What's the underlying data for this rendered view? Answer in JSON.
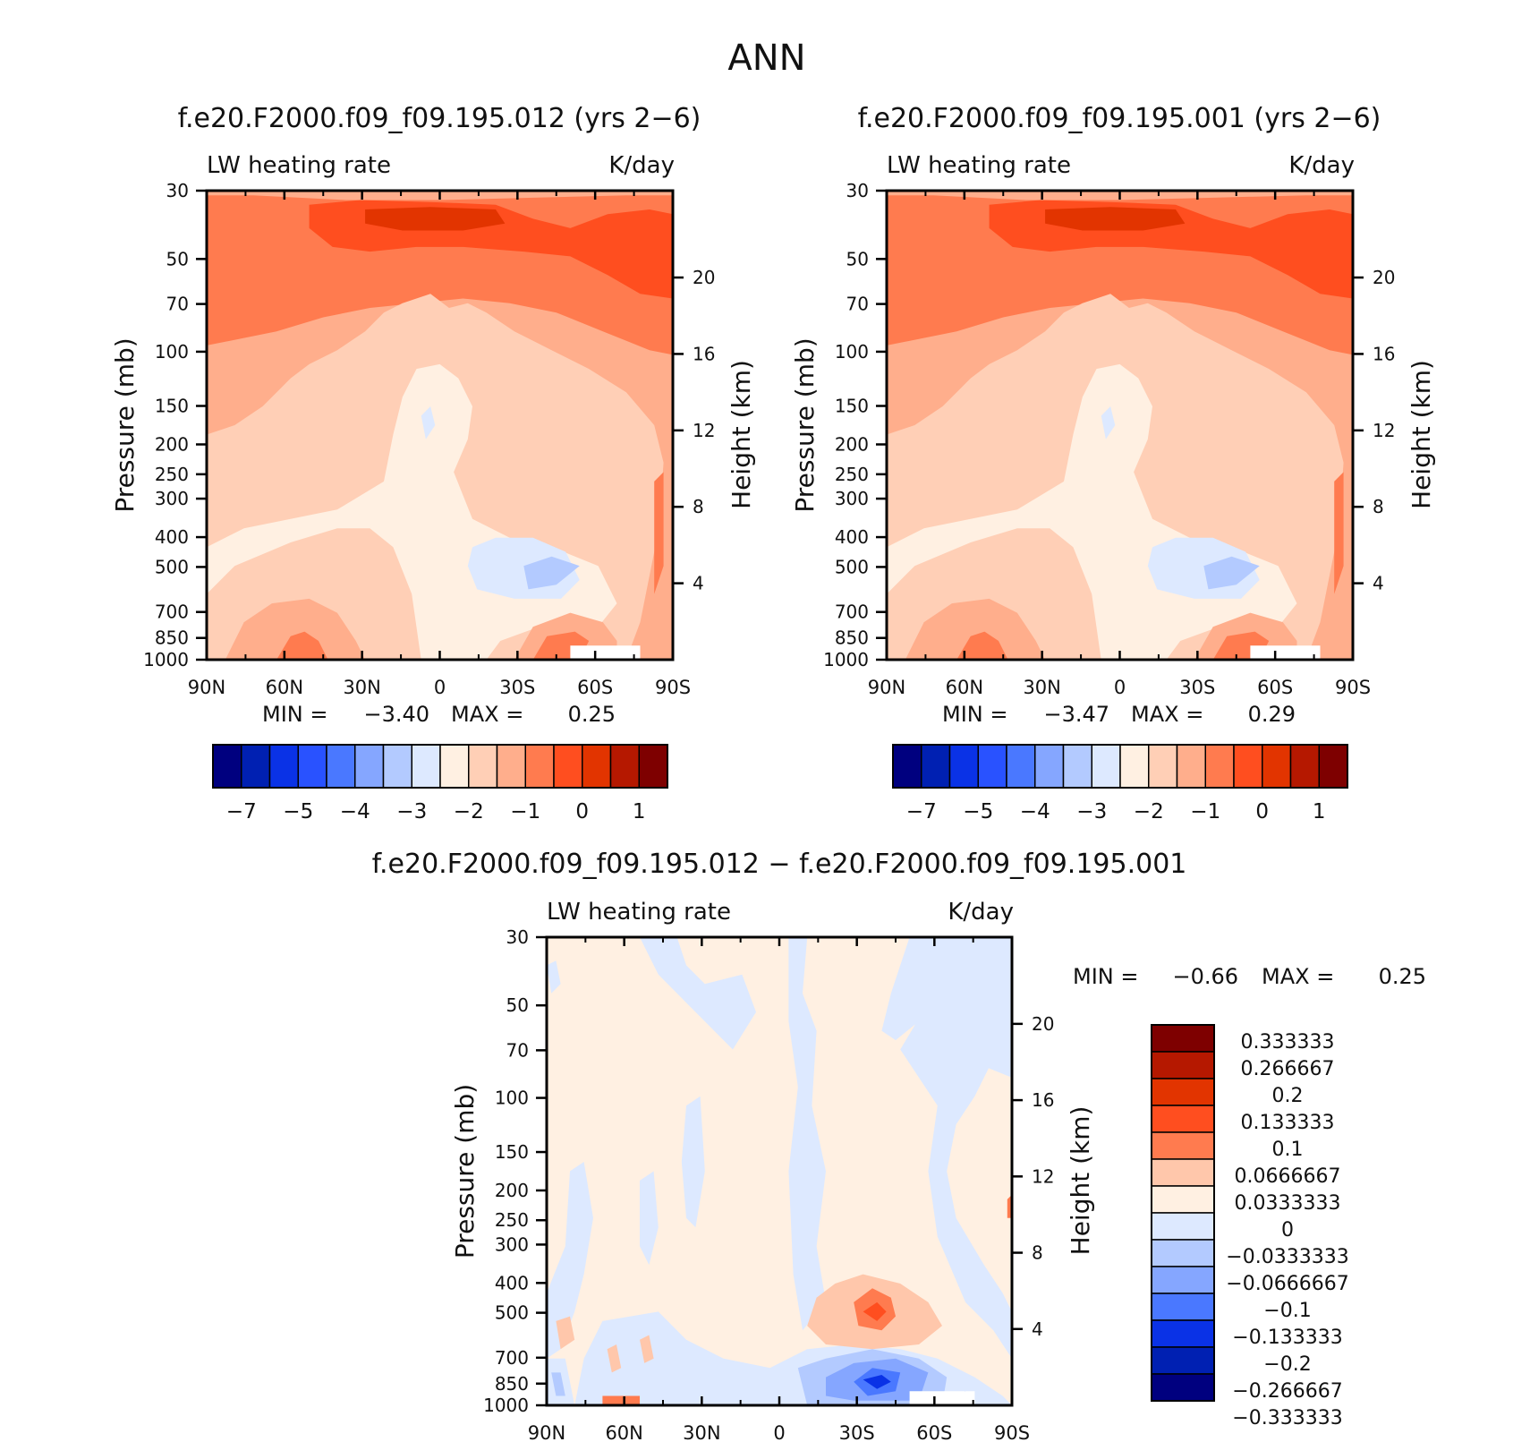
{
  "page_title": "ANN",
  "colors": {
    "full_scale": [
      "#00007f",
      "#0020b2",
      "#0a32e6",
      "#2952ff",
      "#4a78ff",
      "#85a6ff",
      "#b3caff",
      "#dde9ff",
      "#fff0e2",
      "#ffcfb6",
      "#ffae8c",
      "#ff7b4f",
      "#ff4e1f",
      "#e23400",
      "#b51800",
      "#7e0000"
    ],
    "diff_scale": [
      "#7e0000",
      "#b51800",
      "#e23400",
      "#ff4e1f",
      "#ff7b4f",
      "#ffc7ab",
      "#fff0e2",
      "#dde9ff",
      "#b3caff",
      "#85a6ff",
      "#4a78ff",
      "#0a32e6",
      "#0020b2",
      "#00007f"
    ]
  },
  "chart_data": [
    {
      "id": "panel-left",
      "type": "heatmap",
      "title": "f.e20.F2000.f09_f09.195.012 (yrs 2−6)",
      "variable": "LW heating rate",
      "units": "K/day",
      "ylabel": "Pressure (mb)",
      "ylabel_right": "Height (km)",
      "x_ticks": [
        "90N",
        "60N",
        "30N",
        "0",
        "30S",
        "60S",
        "90S"
      ],
      "y_ticks": [
        "30",
        "50",
        "70",
        "100",
        "150",
        "200",
        "250",
        "300",
        "400",
        "500",
        "700",
        "850",
        "1000"
      ],
      "y_ticks_right": [
        "20",
        "16",
        "12",
        "8",
        "4"
      ],
      "min_label": "MIN =",
      "min_value": "−3.40",
      "max_label": "MAX =",
      "max_value": "0.25",
      "colorbar_labels": [
        "−7",
        "−5",
        "−4",
        "−3",
        "−2",
        "−1",
        "0",
        "1"
      ]
    },
    {
      "id": "panel-right",
      "type": "heatmap",
      "title": "f.e20.F2000.f09_f09.195.001 (yrs 2−6)",
      "variable": "LW heating rate",
      "units": "K/day",
      "ylabel": "Pressure (mb)",
      "ylabel_right": "Height (km)",
      "x_ticks": [
        "90N",
        "60N",
        "30N",
        "0",
        "30S",
        "60S",
        "90S"
      ],
      "y_ticks": [
        "30",
        "50",
        "70",
        "100",
        "150",
        "200",
        "250",
        "300",
        "400",
        "500",
        "700",
        "850",
        "1000"
      ],
      "y_ticks_right": [
        "20",
        "16",
        "12",
        "8",
        "4"
      ],
      "min_label": "MIN =",
      "min_value": "−3.47",
      "max_label": "MAX =",
      "max_value": "0.29",
      "colorbar_labels": [
        "−7",
        "−5",
        "−4",
        "−3",
        "−2",
        "−1",
        "0",
        "1"
      ]
    },
    {
      "id": "panel-diff",
      "type": "heatmap",
      "title": "f.e20.F2000.f09_f09.195.012 − f.e20.F2000.f09_f09.195.001",
      "variable": "LW heating rate",
      "units": "K/day",
      "ylabel": "Pressure (mb)",
      "ylabel_right": "Height (km)",
      "x_ticks": [
        "90N",
        "60N",
        "30N",
        "0",
        "30S",
        "60S",
        "90S"
      ],
      "y_ticks": [
        "30",
        "50",
        "70",
        "100",
        "150",
        "200",
        "250",
        "300",
        "400",
        "500",
        "700",
        "850",
        "1000"
      ],
      "y_ticks_right": [
        "20",
        "16",
        "12",
        "8",
        "4"
      ],
      "min_label": "MIN =",
      "min_value": "−0.66",
      "max_label": "MAX =",
      "max_value": "0.25",
      "colorbar_labels": [
        "0.333333",
        "0.266667",
        "0.2",
        "0.133333",
        "0.1",
        "0.0666667",
        "0.0333333",
        "0",
        "−0.0333333",
        "−0.0666667",
        "−0.1",
        "−0.133333",
        "−0.2",
        "−0.266667",
        "−0.333333"
      ]
    }
  ]
}
